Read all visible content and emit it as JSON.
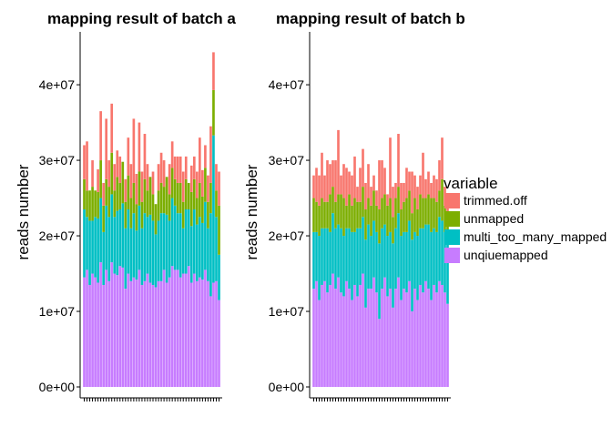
{
  "chart_data": [
    {
      "type": "bar",
      "stacked": true,
      "title": "mapping result of batch a",
      "ylabel": "reads number",
      "xlabel": "",
      "ylim": [
        0,
        47000000
      ],
      "yticks": [
        0,
        10000000,
        20000000,
        30000000,
        40000000
      ],
      "ytick_labels": [
        "0e+00",
        "1e+07",
        "2e+07",
        "3e+07",
        "4e+07"
      ],
      "grid": false,
      "series": [
        {
          "name": "unqiuemapped",
          "values": [
            14500000,
            15500000,
            13500000,
            15000000,
            14500000,
            13800000,
            16500000,
            13500000,
            15500000,
            14000000,
            16500000,
            15000000,
            14800000,
            16000000,
            15800000,
            13000000,
            15000000,
            14000000,
            14500000,
            14200000,
            15500000,
            13500000,
            14000000,
            15000000,
            13800000,
            13500000,
            13200000,
            14000000,
            14000000,
            15500000,
            13800000,
            14500000,
            16000000,
            15500000,
            15500000,
            14500000,
            15000000,
            15000000,
            16000000,
            13800000,
            15000000,
            14000000,
            14500000,
            14200000,
            15500000,
            14000000,
            12000000,
            13800000,
            14000000,
            11500000
          ]
        },
        {
          "name": "multi_too_many_mapped",
          "values": [
            9000000,
            7000000,
            8500000,
            7000000,
            8000000,
            8500000,
            8500000,
            7000000,
            8500000,
            8500000,
            9000000,
            7500000,
            8500000,
            7500000,
            8500000,
            8000000,
            8500000,
            7000000,
            8500000,
            6500000,
            8500000,
            7500000,
            9000000,
            7500000,
            9000000,
            8500000,
            7000000,
            8000000,
            9000000,
            7500000,
            9000000,
            7500000,
            9000000,
            8500000,
            7500000,
            8500000,
            6000000,
            8500000,
            7500000,
            7500000,
            8500000,
            7500000,
            8000000,
            7500000,
            9000000,
            7000000,
            11000000,
            19500000,
            8500000,
            6000000
          ]
        },
        {
          "name": "unmapped",
          "values": [
            4000000,
            3500000,
            4000000,
            4500000,
            3500000,
            3500000,
            5000000,
            3500000,
            3500000,
            4000000,
            5500000,
            3500000,
            4500000,
            3500000,
            5500000,
            3500000,
            4500000,
            4000000,
            4000000,
            3500000,
            4500000,
            3500000,
            4500000,
            3500000,
            5000000,
            3500000,
            4000000,
            4000000,
            4000000,
            3500000,
            5000000,
            3500000,
            4000000,
            3500000,
            4000000,
            4000000,
            3500000,
            4000000,
            3500000,
            4500000,
            4000000,
            3500000,
            4500000,
            3500000,
            4500000,
            3500000,
            4000000,
            6000000,
            3500000,
            6500000
          ]
        },
        {
          "name": "trimmed.off",
          "values": [
            4500000,
            6500000,
            0,
            3500000,
            0,
            3000000,
            6500000,
            3000000,
            8000000,
            3500000,
            6500000,
            3500000,
            3500000,
            3500000,
            0,
            3000000,
            5000000,
            4500000,
            8500000,
            4000000,
            6500000,
            4000000,
            6000000,
            3500000,
            0,
            3000000,
            0,
            3500000,
            4000000,
            3500000,
            0,
            4000000,
            3500000,
            3000000,
            3500000,
            3500000,
            4000000,
            3000000,
            0,
            3500000,
            3000000,
            3500000,
            6000000,
            3500000,
            3000000,
            3500000,
            7500000,
            5000000,
            3500000,
            4500000
          ]
        }
      ]
    },
    {
      "type": "bar",
      "stacked": true,
      "title": "mapping result of batch b",
      "ylabel": "reads number",
      "xlabel": "",
      "ylim": [
        0,
        47000000
      ],
      "yticks": [
        0,
        10000000,
        20000000,
        30000000,
        40000000
      ],
      "ytick_labels": [
        "0e+00",
        "1e+07",
        "2e+07",
        "3e+07",
        "4e+07"
      ],
      "grid": false,
      "series": [
        {
          "name": "unqiuemapped",
          "values": [
            13000000,
            14000000,
            11500000,
            13500000,
            14000000,
            12500000,
            13500000,
            15000000,
            13000000,
            14500000,
            12500000,
            12000000,
            14000000,
            13000000,
            11500000,
            13500000,
            12000000,
            13500000,
            15000000,
            10500000,
            13000000,
            13000000,
            14500000,
            12500000,
            9000000,
            13000000,
            14500000,
            12000000,
            13000000,
            10500000,
            13000000,
            14500000,
            11500000,
            13000000,
            12500000,
            14000000,
            10000000,
            13000000,
            11500000,
            13500000,
            12500000,
            14000000,
            13000000,
            11500000,
            13500000,
            12500000,
            14000000,
            13500000,
            12500000,
            11000000
          ]
        },
        {
          "name": "multi_too_many_mapped",
          "values": [
            7500000,
            6500000,
            8500000,
            7500000,
            7000000,
            8500000,
            7000000,
            8000000,
            8000000,
            7000000,
            8500000,
            8000000,
            7000000,
            8000000,
            9000000,
            7000000,
            9000000,
            7500000,
            7500000,
            9000000,
            8500000,
            7000000,
            7500000,
            8000000,
            10000000,
            8000000,
            7000000,
            8000000,
            7500000,
            8500000,
            8000000,
            8500000,
            8500000,
            7500000,
            8000000,
            8000000,
            9500000,
            7500000,
            8500000,
            7500000,
            8500000,
            7500000,
            8500000,
            9000000,
            7500000,
            8000000,
            8500000,
            8500000,
            8000000,
            8500000
          ]
        },
        {
          "name": "unmapped",
          "values": [
            4500000,
            4000000,
            4000000,
            4000000,
            3500000,
            3500000,
            5000000,
            3500000,
            3500000,
            4000000,
            4500000,
            5000000,
            3000000,
            4500000,
            3500000,
            4500000,
            3500000,
            3500000,
            4000000,
            4000000,
            3500000,
            4000000,
            4000000,
            3500000,
            4500000,
            4000000,
            4000000,
            4000000,
            4500000,
            3500000,
            4000000,
            3500000,
            3500000,
            4000000,
            4500000,
            4000000,
            3500000,
            4500000,
            3500000,
            4500000,
            4000000,
            3500000,
            4000000,
            4500000,
            4000000,
            4000000,
            3500000,
            5500000,
            3500000,
            3000000
          ]
        },
        {
          "name": "trimmed.off",
          "values": [
            3000000,
            4500000,
            4000000,
            6000000,
            3500000,
            5500000,
            4000000,
            3500000,
            5500000,
            8500000,
            2500000,
            4500000,
            5000000,
            3000000,
            4000000,
            5500000,
            2000000,
            4500000,
            5000000,
            3500000,
            4500000,
            2500000,
            2000000,
            2000000,
            6500000,
            5000000,
            3500000,
            1500000,
            8000000,
            4000000,
            2000000,
            7000000,
            3500000,
            2500000,
            4000000,
            2500000,
            5500000,
            3000000,
            3000000,
            2500000,
            6000000,
            2500000,
            3000000,
            2000000,
            3000000,
            3000000,
            4000000,
            5500000,
            2500000,
            3000000
          ]
        }
      ]
    }
  ],
  "legend": {
    "title": "variable",
    "placement": "right",
    "items": [
      {
        "label": "trimmed.off",
        "color": "#F8766D"
      },
      {
        "label": "unmapped",
        "color": "#7CAE00"
      },
      {
        "label": "multi_too_many_mapped",
        "color": "#00BFC4"
      },
      {
        "label": "unqiuemapped",
        "color": "#C77CFF"
      }
    ]
  },
  "colors": {
    "unqiuemapped": "#C77CFF",
    "multi_too_many_mapped": "#00BFC4",
    "unmapped": "#7CAE00",
    "trimmed.off": "#F8766D"
  }
}
